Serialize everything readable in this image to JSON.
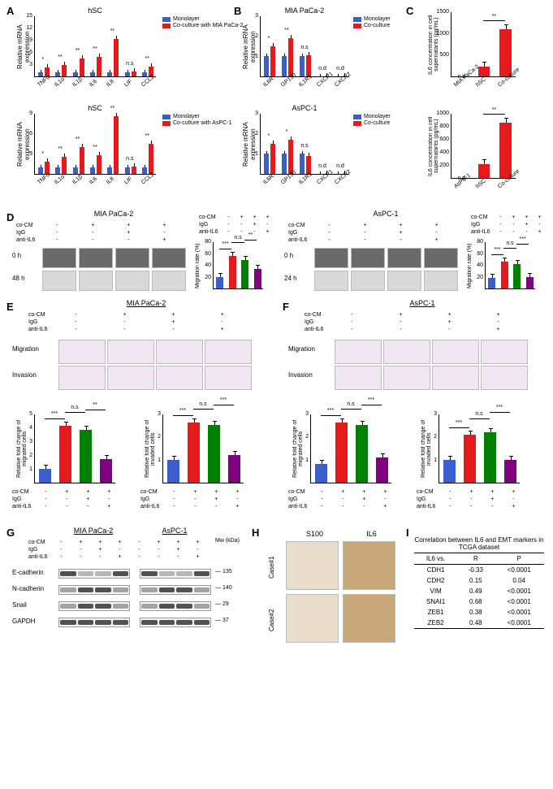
{
  "colors": {
    "blue": "#3a5fcd",
    "red": "#e41a1c",
    "green": "#008000",
    "purple": "#800080"
  },
  "panelA": {
    "label": "A",
    "charts": [
      {
        "title": "hSC",
        "ylabel": "Relative mRNA expression",
        "legend": [
          "Monolayer",
          "Co-culture with MIA PaCa-2"
        ],
        "categories": [
          "TNFα",
          "IL1α",
          "IL1β",
          "IL6",
          "IL8",
          "LIF",
          "CCL2"
        ],
        "mono": [
          1,
          1,
          1,
          1,
          1,
          1,
          1
        ],
        "co": [
          2.2,
          2.9,
          4.5,
          4.8,
          9.2,
          1.2,
          2.5
        ],
        "sig": [
          "*",
          "**",
          "**",
          "**",
          "**",
          "n.s",
          "**"
        ],
        "ymax": 15,
        "ybreaks": [
          3,
          6,
          9,
          12,
          15
        ]
      },
      {
        "title": "hSC",
        "ylabel": "Relative mRNA expression",
        "legend": [
          "Monolayer",
          "Co-culture with AsPC-1"
        ],
        "categories": [
          "TNFα",
          "IL1α",
          "IL1β",
          "IL6",
          "IL8",
          "LIF",
          "CCL2"
        ],
        "mono": [
          1,
          1,
          1,
          1,
          1,
          1,
          1
        ],
        "co": [
          1.8,
          2.5,
          4.0,
          2.8,
          8.5,
          1.1,
          4.5
        ],
        "sig": [
          "*",
          "**",
          "**",
          "**",
          "**",
          "n.s",
          "**"
        ],
        "ymax": 9,
        "ybreaks": [
          3,
          6,
          9
        ]
      }
    ]
  },
  "panelB": {
    "label": "B",
    "charts": [
      {
        "title": "MIA PaCa-2",
        "ylabel": "Relative mRNA expression",
        "legend": [
          "Monolayer",
          "Co-culture"
        ],
        "categories": [
          "IL6R",
          "GP130",
          "IL1R1",
          "CXCR1",
          "CXCR2"
        ],
        "mono": [
          1,
          1,
          1,
          0,
          0
        ],
        "co": [
          1.5,
          1.9,
          1.05,
          0,
          0
        ],
        "sig": [
          "*",
          "**",
          "n.s",
          "n.d",
          "n.d"
        ],
        "ymax": 3,
        "ybreaks": [
          1,
          2,
          3
        ]
      },
      {
        "title": "AsPC-1",
        "ylabel": "Relative mRNA expression",
        "legend": [
          "Monolayer",
          "Co-culture"
        ],
        "categories": [
          "IL6R",
          "GP130",
          "IL1R1",
          "CXCR1",
          "CXCR2"
        ],
        "mono": [
          1,
          1,
          1,
          0,
          0
        ],
        "co": [
          1.5,
          1.7,
          0.9,
          0,
          0
        ],
        "sig": [
          "*",
          "*",
          "n.s",
          "n.d",
          "n.d"
        ],
        "ymax": 3,
        "ybreaks": [
          1,
          2,
          3
        ]
      }
    ]
  },
  "panelC": {
    "label": "C",
    "charts": [
      {
        "ylabel": "IL6 concentration in cell supernatants (pg/mL)",
        "categories": [
          "MIA PaCa-2",
          "hSC",
          "Co-culture"
        ],
        "values": [
          0,
          220,
          1080
        ],
        "sig_labels": [
          "n.d",
          "",
          ""
        ],
        "sig_top": "**",
        "ymax": 1500,
        "ybreaks": [
          500,
          1000,
          1500
        ]
      },
      {
        "ylabel": "IL6 concentration in cell supernatants (pg/mL)",
        "categories": [
          "AsPC-1",
          "hSC",
          "Co-culture"
        ],
        "values": [
          0,
          210,
          850
        ],
        "sig_labels": [
          "n.d",
          "",
          ""
        ],
        "sig_top": "**",
        "ymax": 1000,
        "ybreaks": [
          200,
          400,
          600,
          800,
          1000
        ]
      }
    ]
  },
  "panelD": {
    "label": "D",
    "cells": [
      "MIA PaCa-2",
      "AsPC-1"
    ],
    "treatments": [
      "co-CM",
      "IgG",
      "anti-IL6"
    ],
    "cols": [
      [
        "-",
        "-",
        "-"
      ],
      [
        "+",
        "-",
        "-"
      ],
      [
        "+",
        "+",
        "-"
      ],
      [
        "+",
        "-",
        "+"
      ]
    ],
    "time_labels_mia": [
      "0 h",
      "48 h"
    ],
    "time_labels_aspc": [
      "0 h",
      "24 h"
    ],
    "chart": {
      "ylabel": "Migration rate (%)",
      "mia_values": [
        20,
        55,
        48,
        33
      ],
      "mia_sig": [
        [
          "***",
          0,
          1
        ],
        [
          "n.s",
          1,
          2
        ],
        [
          "**",
          2,
          3
        ]
      ],
      "aspc_values": [
        18,
        45,
        42,
        20
      ],
      "aspc_sig": [
        [
          "***",
          0,
          1
        ],
        [
          "n.s",
          1,
          2
        ],
        [
          "***",
          2,
          3
        ]
      ],
      "ymax": 80,
      "ybreaks": [
        20,
        40,
        60,
        80
      ],
      "colors": [
        "blue",
        "red",
        "green",
        "purple"
      ]
    }
  },
  "panelE": {
    "label": "E",
    "title": "MIA PaCa-2",
    "treatments": [
      "co-CM",
      "IgG",
      "anti-IL6"
    ],
    "cols": [
      [
        "-",
        "-",
        "-"
      ],
      [
        "+",
        "-",
        "-"
      ],
      [
        "+",
        "+",
        "-"
      ],
      [
        "+",
        "-",
        "+"
      ]
    ],
    "row_labels": [
      "Migration",
      "Invasion"
    ],
    "charts": [
      {
        "ylabel": "Relative fold change of migrated cells",
        "values": [
          1.0,
          4.1,
          3.8,
          1.7
        ],
        "sig": [
          [
            "***",
            0,
            1
          ],
          [
            "n.s",
            1,
            2
          ],
          [
            "**",
            2,
            3
          ]
        ],
        "ymax": 5
      },
      {
        "ylabel": "Relative fold change of invaded cells",
        "values": [
          1.0,
          2.6,
          2.5,
          1.2
        ],
        "sig": [
          [
            "***",
            0,
            1
          ],
          [
            "n.s",
            1,
            2
          ],
          [
            "***",
            2,
            3
          ]
        ],
        "ymax": 3
      }
    ]
  },
  "panelF": {
    "label": "F",
    "title": "AsPC-1",
    "treatments": [
      "co-CM",
      "IgG",
      "anti-IL6"
    ],
    "cols": [
      [
        "-",
        "-",
        "-"
      ],
      [
        "+",
        "-",
        "-"
      ],
      [
        "+",
        "+",
        "-"
      ],
      [
        "+",
        "-",
        "+"
      ]
    ],
    "row_labels": [
      "Migration",
      "Invasion"
    ],
    "charts": [
      {
        "ylabel": "Relative fold change of migrated cells",
        "values": [
          0.8,
          2.6,
          2.5,
          1.1
        ],
        "sig": [
          [
            "***",
            0,
            1
          ],
          [
            "n.s",
            1,
            2
          ],
          [
            "***",
            2,
            3
          ]
        ],
        "ymax": 3
      },
      {
        "ylabel": "Relative fold change of invaded cells",
        "values": [
          1.0,
          2.1,
          2.2,
          1.0
        ],
        "sig": [
          [
            "***",
            0,
            1
          ],
          [
            "n.s",
            1,
            2
          ],
          [
            "***",
            2,
            3
          ]
        ],
        "ymax": 3
      }
    ]
  },
  "panelG": {
    "label": "G",
    "cells": [
      "MIA PaCa-2",
      "AsPC-1"
    ],
    "treatments": [
      "co-CM",
      "IgG",
      "anti-IL6"
    ],
    "cols": [
      [
        "-",
        "-",
        "-"
      ],
      [
        "+",
        "-",
        "-"
      ],
      [
        "+",
        "+",
        "-"
      ],
      [
        "+",
        "-",
        "+"
      ]
    ],
    "proteins": [
      "E-cadherin",
      "N-cadherin",
      "Snail",
      "GAPDH"
    ],
    "mw": [
      "135",
      "140",
      "29",
      "37"
    ],
    "mw_label": "Mw (kDa)"
  },
  "panelH": {
    "label": "H",
    "col_labels": [
      "S100",
      "IL6"
    ],
    "row_labels": [
      "Case#1",
      "Case#2"
    ]
  },
  "panelI": {
    "label": "I",
    "title": "Correlation between IL6 and EMT markers in TCGA dataset",
    "header": [
      "IL6 vs.",
      "R",
      "P"
    ],
    "rows": [
      [
        "CDH1",
        "-0.33",
        "<0.0001"
      ],
      [
        "CDH2",
        "0.15",
        "0.04"
      ],
      [
        "VIM",
        "0.49",
        "<0.0001"
      ],
      [
        "SNAI1",
        "0.68",
        "<0.0001"
      ],
      [
        "ZEB1",
        "0.38",
        "<0.0001"
      ],
      [
        "ZEB2",
        "0.48",
        "<0.0001"
      ]
    ]
  }
}
